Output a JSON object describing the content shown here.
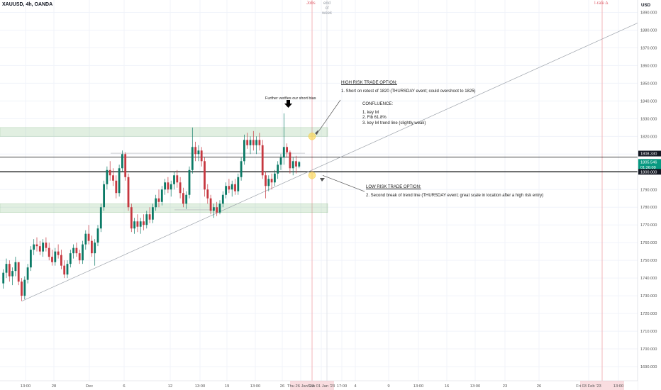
{
  "symbol": "XAUUSD, 4h, OANDA",
  "currency": "USD",
  "events": {
    "jobs": "Jobs",
    "end_of_week": [
      "end",
      "of",
      "week"
    ],
    "irate": "I-rate ∆"
  },
  "annotations": {
    "short_bias": "Further verifies our short bias",
    "high_risk_title": "HIGH RISK TRADE OPTION:",
    "high_risk_1": "1. Short on retest of 1820 (THURSDAY event; could overshoot to 1825)",
    "confluence_title": "CONFLUENCE:",
    "confluence_items": [
      "1. key lvl",
      "2. Fib 61.8%",
      "3. key lvl trend line (slightly weak)"
    ],
    "low_risk_title": "LOW RISK TRADE OPTION:",
    "low_risk_1": "2. Second break of trend line (THURSDAY event; great scale in location after a high risk entry)"
  },
  "chart_data": {
    "type": "candlestick",
    "y_axis": {
      "range": [
        1682,
        1897
      ],
      "ticks": [
        1690,
        1700,
        1710,
        1720,
        1730,
        1740,
        1750,
        1760,
        1770,
        1780,
        1790,
        1800,
        1810,
        1820,
        1830,
        1840,
        1850,
        1860,
        1870,
        1880,
        1890
      ],
      "labels": [
        "1690.000",
        "1700.000",
        "1710.000",
        "1720.000",
        "1730.000",
        "1740.000",
        "1750.000",
        "1760.000",
        "1770.000",
        "1780.000",
        "1790.000",
        "1800.000",
        "1810.000",
        "1820.000",
        "1830.000",
        "1840.000",
        "1850.000",
        "1860.000",
        "1870.000",
        "1880.000",
        "1890.000"
      ]
    },
    "x_axis": {
      "labels": [
        "13:00",
        "28",
        "Dec",
        "6",
        "12",
        "13:00",
        "19",
        "13:00",
        "26",
        "Thu 26 Jan '23",
        "Sun 01 Jan '23",
        "17:00",
        "4",
        "9",
        "13:00",
        "16",
        "13:00",
        "23",
        "26",
        "Fri 03 Feb '23",
        "13:00"
      ]
    },
    "price_labels": {
      "upper_level": "1808.330",
      "last_price": "1805.546",
      "countdown": "01:26:09",
      "key_level": "1800.000"
    },
    "levels": [
      1808.33,
      1800.0
    ],
    "zones": [
      [
        1820,
        1825
      ],
      [
        1777,
        1782
      ]
    ],
    "trendline": {
      "from": [
        0,
        1727
      ],
      "to": [
        222,
        1884
      ]
    },
    "highlight_points": [
      {
        "bar": 108,
        "price": 1820
      },
      {
        "bar": 108,
        "price": 1798
      }
    ],
    "candles": [
      [
        1737,
        1745,
        1734,
        1743
      ],
      [
        1743,
        1751,
        1740,
        1748
      ],
      [
        1748,
        1750,
        1738,
        1741
      ],
      [
        1741,
        1746,
        1736,
        1744
      ],
      [
        1744,
        1752,
        1741,
        1749
      ],
      [
        1749,
        1748,
        1736,
        1738
      ],
      [
        1738,
        1740,
        1727,
        1730
      ],
      [
        1730,
        1741,
        1728,
        1739
      ],
      [
        1739,
        1748,
        1737,
        1746
      ],
      [
        1746,
        1758,
        1744,
        1756
      ],
      [
        1756,
        1762,
        1753,
        1759
      ],
      [
        1759,
        1763,
        1755,
        1758
      ],
      [
        1758,
        1761,
        1753,
        1755
      ],
      [
        1755,
        1762,
        1752,
        1760
      ],
      [
        1760,
        1763,
        1755,
        1757
      ],
      [
        1757,
        1760,
        1750,
        1752
      ],
      [
        1752,
        1756,
        1747,
        1749
      ],
      [
        1749,
        1757,
        1747,
        1755
      ],
      [
        1755,
        1759,
        1751,
        1753
      ],
      [
        1753,
        1756,
        1745,
        1747
      ],
      [
        1747,
        1750,
        1740,
        1742
      ],
      [
        1742,
        1750,
        1740,
        1748
      ],
      [
        1748,
        1756,
        1746,
        1754
      ],
      [
        1754,
        1759,
        1751,
        1757
      ],
      [
        1757,
        1760,
        1752,
        1754
      ],
      [
        1754,
        1756,
        1748,
        1750
      ],
      [
        1750,
        1761,
        1748,
        1759
      ],
      [
        1759,
        1767,
        1756,
        1765
      ],
      [
        1765,
        1770,
        1759,
        1761
      ],
      [
        1761,
        1764,
        1752,
        1754
      ],
      [
        1754,
        1762,
        1747,
        1760
      ],
      [
        1760,
        1770,
        1758,
        1768
      ],
      [
        1768,
        1782,
        1766,
        1780
      ],
      [
        1780,
        1795,
        1778,
        1793
      ],
      [
        1793,
        1803,
        1790,
        1801
      ],
      [
        1801,
        1806,
        1795,
        1798
      ],
      [
        1798,
        1802,
        1792,
        1795
      ],
      [
        1795,
        1798,
        1785,
        1788
      ],
      [
        1788,
        1804,
        1786,
        1802
      ],
      [
        1802,
        1812,
        1800,
        1810
      ],
      [
        1810,
        1811,
        1795,
        1797
      ],
      [
        1797,
        1799,
        1778,
        1780
      ],
      [
        1780,
        1782,
        1766,
        1768
      ],
      [
        1768,
        1774,
        1765,
        1772
      ],
      [
        1772,
        1776,
        1766,
        1769
      ],
      [
        1769,
        1774,
        1765,
        1772
      ],
      [
        1772,
        1776,
        1767,
        1770
      ],
      [
        1770,
        1778,
        1768,
        1776
      ],
      [
        1776,
        1780,
        1771,
        1773
      ],
      [
        1773,
        1782,
        1771,
        1780
      ],
      [
        1780,
        1787,
        1778,
        1785
      ],
      [
        1785,
        1790,
        1780,
        1783
      ],
      [
        1783,
        1792,
        1781,
        1790
      ],
      [
        1790,
        1796,
        1787,
        1794
      ],
      [
        1794,
        1797,
        1788,
        1790
      ],
      [
        1790,
        1795,
        1786,
        1793
      ],
      [
        1793,
        1800,
        1790,
        1798
      ],
      [
        1798,
        1801,
        1791,
        1794
      ],
      [
        1794,
        1797,
        1785,
        1788
      ],
      [
        1788,
        1791,
        1780,
        1782
      ],
      [
        1782,
        1789,
        1779,
        1787
      ],
      [
        1787,
        1803,
        1785,
        1801
      ],
      [
        1801,
        1825,
        1799,
        1814
      ],
      [
        1814,
        1817,
        1806,
        1810
      ],
      [
        1810,
        1815,
        1806,
        1812
      ],
      [
        1812,
        1814,
        1803,
        1806
      ],
      [
        1806,
        1808,
        1786,
        1790
      ],
      [
        1790,
        1793,
        1782,
        1785
      ],
      [
        1785,
        1787,
        1776,
        1778
      ],
      [
        1778,
        1782,
        1774,
        1780
      ],
      [
        1780,
        1783,
        1775,
        1777
      ],
      [
        1777,
        1784,
        1776,
        1782
      ],
      [
        1782,
        1789,
        1780,
        1787
      ],
      [
        1787,
        1794,
        1785,
        1792
      ],
      [
        1792,
        1796,
        1788,
        1790
      ],
      [
        1790,
        1795,
        1786,
        1793
      ],
      [
        1793,
        1796,
        1787,
        1789
      ],
      [
        1789,
        1799,
        1787,
        1797
      ],
      [
        1797,
        1808,
        1795,
        1806
      ],
      [
        1806,
        1821,
        1804,
        1818
      ],
      [
        1818,
        1822,
        1813,
        1815
      ],
      [
        1815,
        1820,
        1810,
        1818
      ],
      [
        1818,
        1823,
        1812,
        1815
      ],
      [
        1815,
        1820,
        1810,
        1818
      ],
      [
        1818,
        1822,
        1812,
        1815
      ],
      [
        1815,
        1818,
        1796,
        1798
      ],
      [
        1798,
        1800,
        1785,
        1792
      ],
      [
        1792,
        1798,
        1789,
        1796
      ],
      [
        1796,
        1799,
        1790,
        1794
      ],
      [
        1794,
        1801,
        1792,
        1799
      ],
      [
        1799,
        1806,
        1796,
        1804
      ],
      [
        1804,
        1810,
        1801,
        1808
      ],
      [
        1808,
        1833,
        1804,
        1814
      ],
      [
        1814,
        1816,
        1808,
        1811
      ],
      [
        1811,
        1812,
        1799,
        1802
      ],
      [
        1802,
        1808,
        1798,
        1806
      ],
      [
        1806,
        1809,
        1799,
        1803
      ],
      [
        1803,
        1806,
        1802,
        1805.5
      ]
    ]
  }
}
